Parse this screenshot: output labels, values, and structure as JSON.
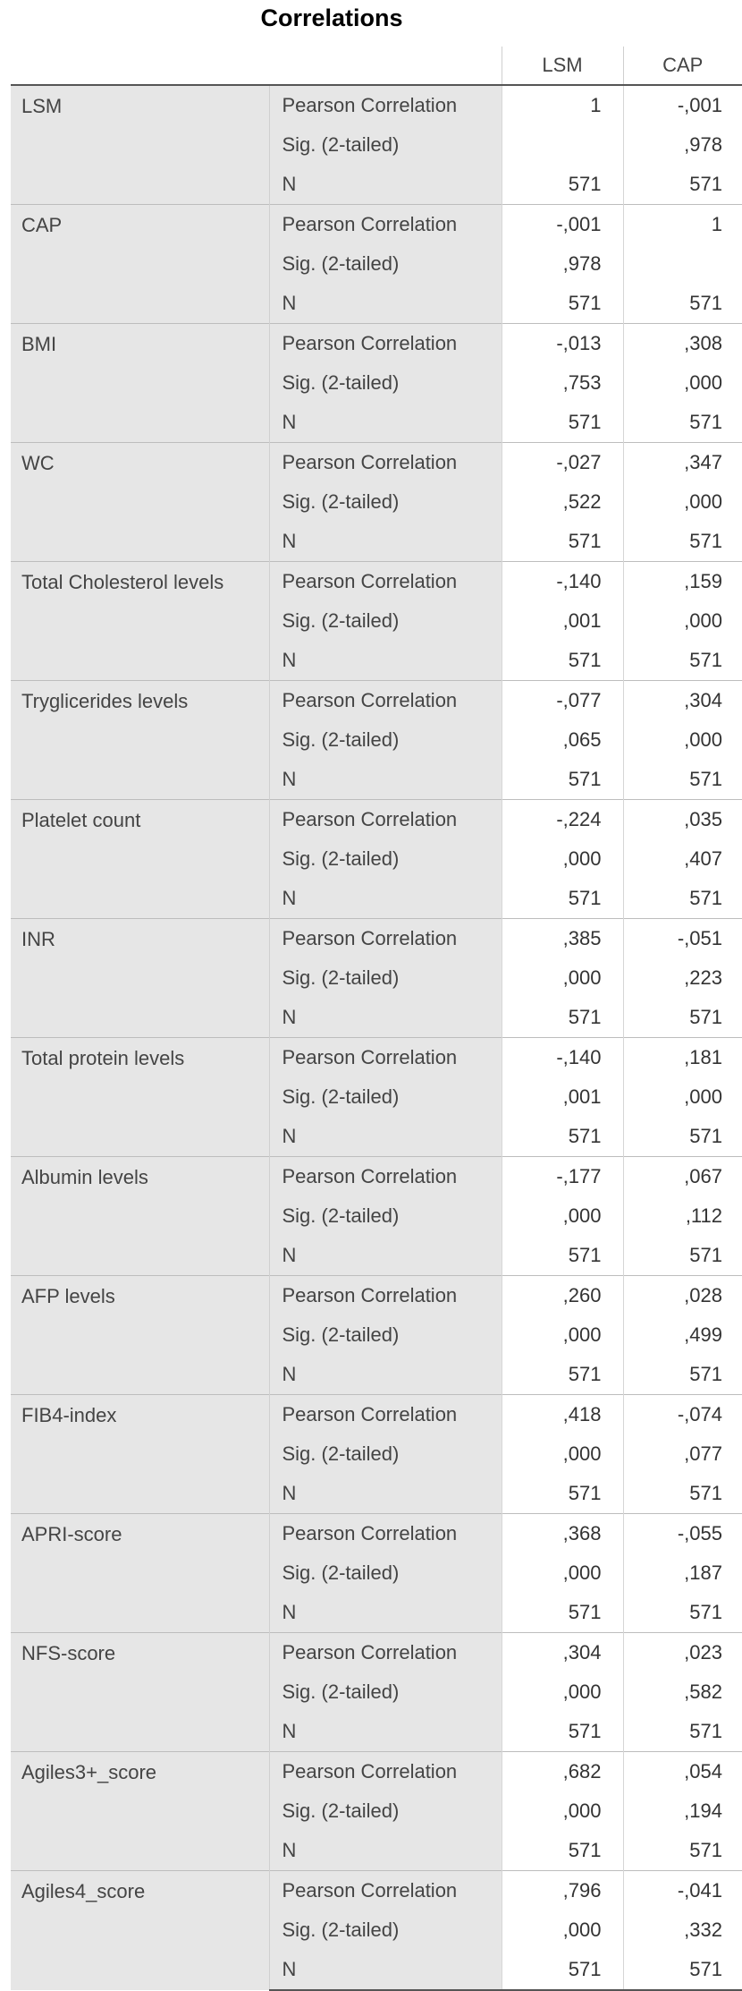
{
  "title": "Correlations",
  "columns": [
    "LSM",
    "CAP"
  ],
  "stat_labels": [
    "Pearson Correlation",
    "Sig. (2-tailed)",
    "N"
  ],
  "rows": [
    {
      "name": "LSM",
      "lsm": [
        "1",
        "",
        "571"
      ],
      "cap": [
        "-,001",
        ",978",
        "571"
      ]
    },
    {
      "name": "CAP",
      "lsm": [
        "-,001",
        ",978",
        "571"
      ],
      "cap": [
        "1",
        "",
        "571"
      ]
    },
    {
      "name": "BMI",
      "lsm": [
        "-,013",
        ",753",
        "571"
      ],
      "cap": [
        ",308",
        ",000",
        "571"
      ]
    },
    {
      "name": "WC",
      "lsm": [
        "-,027",
        ",522",
        "571"
      ],
      "cap": [
        ",347",
        ",000",
        "571"
      ]
    },
    {
      "name": "Total Cholesterol levels",
      "lsm": [
        "-,140",
        ",001",
        "571"
      ],
      "cap": [
        ",159",
        ",000",
        "571"
      ]
    },
    {
      "name": "Tryglicerides levels",
      "lsm": [
        "-,077",
        ",065",
        "571"
      ],
      "cap": [
        ",304",
        ",000",
        "571"
      ]
    },
    {
      "name": "Platelet count",
      "lsm": [
        "-,224",
        ",000",
        "571"
      ],
      "cap": [
        ",035",
        ",407",
        "571"
      ]
    },
    {
      "name": "INR",
      "lsm": [
        ",385",
        ",000",
        "571"
      ],
      "cap": [
        "-,051",
        ",223",
        "571"
      ]
    },
    {
      "name": "Total protein levels",
      "lsm": [
        "-,140",
        ",001",
        "571"
      ],
      "cap": [
        ",181",
        ",000",
        "571"
      ]
    },
    {
      "name": "Albumin levels",
      "lsm": [
        "-,177",
        ",000",
        "571"
      ],
      "cap": [
        ",067",
        ",112",
        "571"
      ]
    },
    {
      "name": "AFP levels",
      "lsm": [
        ",260",
        ",000",
        "571"
      ],
      "cap": [
        ",028",
        ",499",
        "571"
      ]
    },
    {
      "name": "FIB4-index",
      "lsm": [
        ",418",
        ",000",
        "571"
      ],
      "cap": [
        "-,074",
        ",077",
        "571"
      ]
    },
    {
      "name": "APRI-score",
      "lsm": [
        ",368",
        ",000",
        "571"
      ],
      "cap": [
        "-,055",
        ",187",
        "571"
      ]
    },
    {
      "name": "NFS-score",
      "lsm": [
        ",304",
        ",000",
        "571"
      ],
      "cap": [
        ",023",
        ",582",
        "571"
      ]
    },
    {
      "name": "Agiles3+_score",
      "lsm": [
        ",682",
        ",000",
        "571"
      ],
      "cap": [
        ",054",
        ",194",
        "571"
      ]
    },
    {
      "name": "Agiles4_score",
      "lsm": [
        ",796",
        ",000",
        "571"
      ],
      "cap": [
        "-,041",
        ",332",
        "571"
      ]
    }
  ]
}
